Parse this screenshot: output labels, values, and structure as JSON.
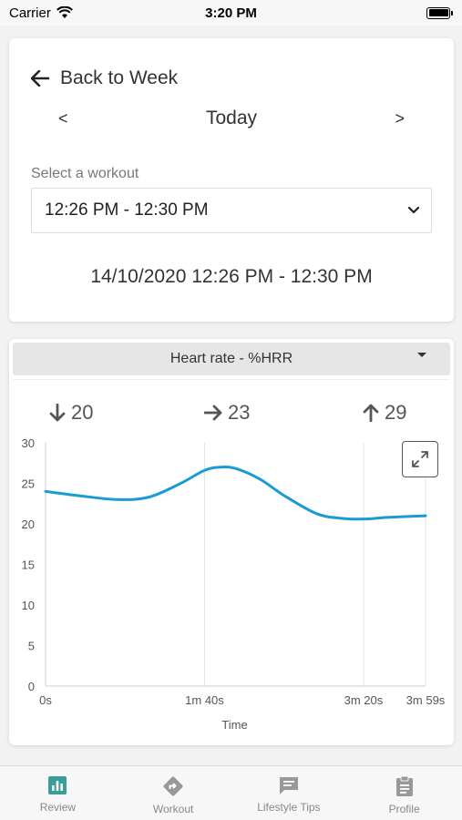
{
  "status_bar": {
    "carrier": "Carrier",
    "time": "3:20 PM",
    "battery_level": 1.0
  },
  "header": {
    "back_label": "Back to Week",
    "prev_label": "<",
    "next_label": ">",
    "day_title": "Today"
  },
  "workout_select": {
    "label": "Select a workout",
    "value": "12:26 PM - 12:30 PM"
  },
  "workout_datetime": "14/10/2020 12:26 PM - 12:30 PM",
  "metric_select": {
    "value": "Heart rate - %HRR"
  },
  "stats": {
    "min": "20",
    "avg": "23",
    "max": "29"
  },
  "colors": {
    "accent": "#3a9d97",
    "line": "#1a9ad6",
    "inactive": "#999999"
  },
  "chart_data": {
    "type": "line",
    "title": "",
    "xlabel": "Time",
    "ylabel": "",
    "ylim": [
      0,
      30
    ],
    "yticks": [
      0,
      5,
      10,
      15,
      20,
      25,
      30
    ],
    "xlim": [
      0,
      239
    ],
    "xticks": [
      {
        "value": 0,
        "label": "0s"
      },
      {
        "value": 100,
        "label": "1m 40s"
      },
      {
        "value": 200,
        "label": "3m 20s"
      },
      {
        "value": 239,
        "label": "3m 59s"
      }
    ],
    "grid": "vertical",
    "legend": "none",
    "series": [
      {
        "values_x": [
          0,
          20,
          45,
          65,
          85,
          100,
          110,
          120,
          135,
          150,
          170,
          185,
          200,
          215,
          239
        ],
        "values_y": [
          24.0,
          23.5,
          23.0,
          23.3,
          25.0,
          26.6,
          27.0,
          26.8,
          25.5,
          23.5,
          21.3,
          20.7,
          20.6,
          20.8,
          21.0
        ]
      }
    ]
  },
  "tabs": [
    {
      "label": "Review",
      "icon": "chart-icon",
      "active": true
    },
    {
      "label": "Workout",
      "icon": "directions-icon",
      "active": false
    },
    {
      "label": "Lifestyle Tips",
      "icon": "message-icon",
      "active": false
    },
    {
      "label": "Profile",
      "icon": "clipboard-icon",
      "active": false
    }
  ]
}
